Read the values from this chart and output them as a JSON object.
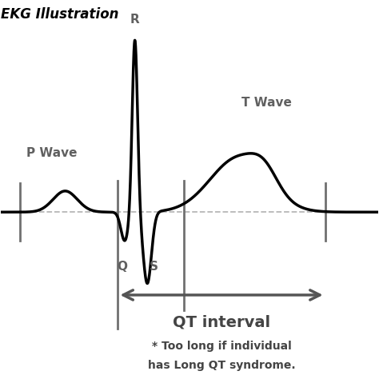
{
  "title": "EKG Illustration",
  "background_color": "#ffffff",
  "ecg_color": "#000000",
  "baseline_color": "#b8b8b8",
  "grid_line_color": "#707070",
  "arrow_color": "#555555",
  "label_color": "#606060",
  "p_wave_label": "P Wave",
  "r_label": "R",
  "q_label": "Q",
  "s_label": "S",
  "t_wave_label": "T Wave",
  "qt_interval_label": "QT interval",
  "qt_note_line1": "* Too long if individual",
  "qt_note_line2": "has Long QT syndrome.",
  "xlim": [
    0,
    10
  ],
  "ylim": [
    -2.2,
    2.8
  ],
  "baseline_y": 0.0,
  "qt_start_x": 3.1,
  "qt_end_x": 8.6,
  "vline1_x": 0.5,
  "vline2_x": 3.1,
  "vline3_x": 4.85,
  "vline4_x": 8.6
}
